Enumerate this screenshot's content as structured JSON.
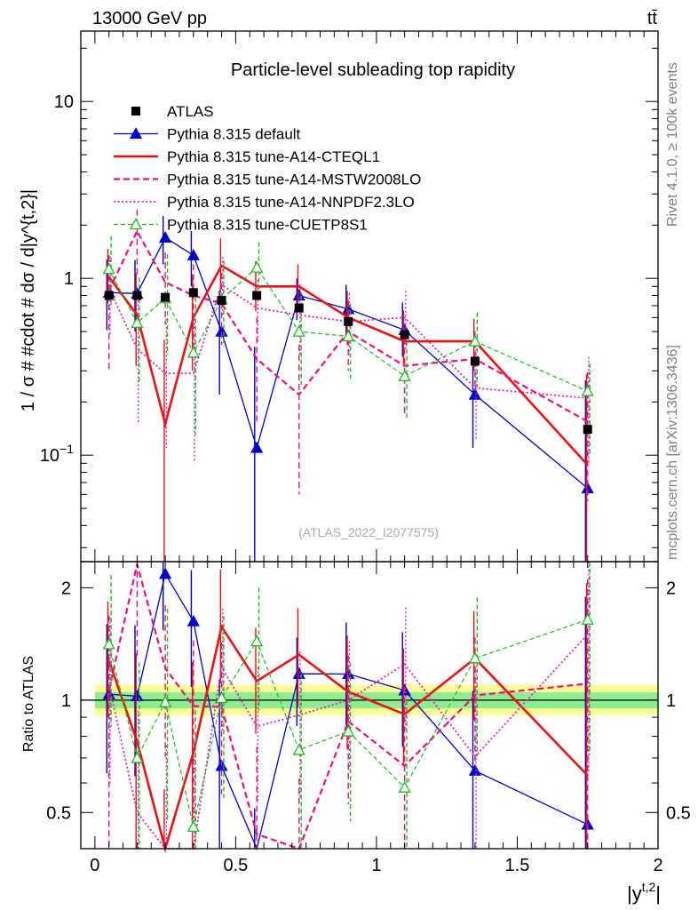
{
  "header": {
    "left": "13000 GeV pp",
    "right": "tt̄"
  },
  "side_labels": {
    "rivet": "Rivet 4.1.0, ≥ 100k events",
    "mcplots": "mcplots.cern.ch [arXiv:1306.3436]"
  },
  "chart_data": {
    "type": "line",
    "title": "Particle-level subleading top rapidity",
    "analysis_id": "(ATLAS_2022_I2077575)",
    "xlabel": "|y^{t,2}|",
    "ylabel": "1 / σ # #cdot # dσ / d|y^{t,2}|",
    "ratio_ylabel": "Ratio to ATLAS",
    "xlim": [
      -0.05,
      2.0
    ],
    "ylim": [
      0.025,
      25
    ],
    "ratio_ylim": [
      0.4,
      2.35
    ],
    "log_y": true,
    "x_ticks": [
      "0",
      "0.5",
      "1",
      "1.5",
      "2"
    ],
    "y_ticks": [
      "10^{−1}",
      "1",
      "10"
    ],
    "ratio_ticks": [
      "0.5",
      "1",
      "2"
    ],
    "bin_edges": [
      0,
      0.1,
      0.2,
      0.3,
      0.4,
      0.5,
      0.65,
      0.8,
      1.0,
      1.2,
      1.5,
      2.0
    ],
    "data": {
      "name": "ATLAS",
      "color": "#000000",
      "x": [
        0.05,
        0.15,
        0.25,
        0.35,
        0.45,
        0.575,
        0.725,
        0.9,
        1.1,
        1.35,
        1.75
      ],
      "values": [
        0.8,
        0.8,
        0.78,
        0.83,
        0.75,
        0.8,
        0.68,
        0.57,
        0.48,
        0.34,
        0.14
      ]
    },
    "ratio_bands": {
      "stat": {
        "color": "#90ee90",
        "low": 0.95,
        "high": 1.05
      },
      "total": {
        "color": "#ffff99",
        "low": 0.91,
        "high": 1.1
      }
    },
    "series": [
      {
        "name": "Pythia 8.315 default",
        "color": "#0000cc",
        "dash": "",
        "width": 1.3,
        "marker": "triangle",
        "values": [
          0.83,
          0.82,
          1.7,
          1.35,
          0.5,
          0.11,
          0.8,
          0.67,
          0.51,
          0.22,
          0.065
        ],
        "err_low": [
          0.32,
          0.32,
          0.5,
          0.45,
          0.28,
          0.11,
          0.22,
          0.18,
          0.15,
          0.11,
          0.064
        ],
        "err_high": [
          0.45,
          0.45,
          0.55,
          0.5,
          0.35,
          0.3,
          0.2,
          0.25,
          0.22,
          0.14,
          0.2
        ]
      },
      {
        "name": "Pythia 8.315 tune-A14-CTEQL1",
        "color": "#ee1111",
        "dash": "",
        "width": 2.6,
        "marker": "none",
        "values": [
          1.02,
          0.62,
          0.15,
          0.6,
          1.18,
          0.9,
          0.9,
          0.6,
          0.44,
          0.44,
          0.088
        ],
        "err_low": [
          0.3,
          0.3,
          0.15,
          0.3,
          0.35,
          0.25,
          0.25,
          0.18,
          0.12,
          0.14,
          0.085
        ],
        "err_high": [
          0.45,
          0.45,
          0.3,
          0.45,
          0.5,
          0.35,
          0.3,
          0.25,
          0.22,
          0.15,
          0.2
        ]
      },
      {
        "name": "Pythia 8.315 tune-A14-MSTW2008LO",
        "color": "#ee1177",
        "dash": "7,4",
        "width": 2.2,
        "marker": "none",
        "values": [
          0.85,
          1.85,
          0.95,
          0.8,
          0.72,
          0.35,
          0.22,
          0.5,
          0.32,
          0.35,
          0.155
        ],
        "err_low": [
          0.55,
          0.8,
          0.4,
          0.4,
          0.3,
          0.2,
          0.16,
          0.2,
          0.15,
          0.12,
          0.1
        ],
        "err_high": [
          0.5,
          0.6,
          0.45,
          0.4,
          0.35,
          0.25,
          0.2,
          0.25,
          0.2,
          0.15,
          0.14
        ]
      },
      {
        "name": "Pythia 8.315 tune-A14-NNPDF2.3LO",
        "color": "#dd22cc",
        "dash": "2,2.5",
        "width": 1.8,
        "marker": "none",
        "values": [
          0.88,
          0.4,
          0.29,
          0.29,
          0.92,
          0.68,
          0.62,
          0.57,
          0.6,
          0.24,
          0.21
        ],
        "err_low": [
          0.4,
          0.25,
          0.18,
          0.2,
          0.3,
          0.25,
          0.25,
          0.2,
          0.2,
          0.12,
          0.12
        ],
        "err_high": [
          0.45,
          0.35,
          0.3,
          0.3,
          0.4,
          0.3,
          0.3,
          0.25,
          0.25,
          0.18,
          0.15
        ]
      },
      {
        "name": "Pythia 8.315 tune-CUETP8S1",
        "color": "#22bb22",
        "dash": "5,3",
        "width": 1.2,
        "marker": "triangle-open",
        "values": [
          1.13,
          0.56,
          0.77,
          0.38,
          0.76,
          1.15,
          0.5,
          0.47,
          0.28,
          0.44,
          0.23
        ],
        "err_low": [
          0.45,
          0.3,
          0.4,
          0.25,
          0.35,
          0.4,
          0.25,
          0.2,
          0.12,
          0.2,
          0.13
        ],
        "err_high": [
          0.6,
          0.45,
          0.6,
          0.4,
          0.5,
          0.45,
          0.3,
          0.25,
          0.2,
          0.2,
          0.1
        ]
      }
    ]
  }
}
